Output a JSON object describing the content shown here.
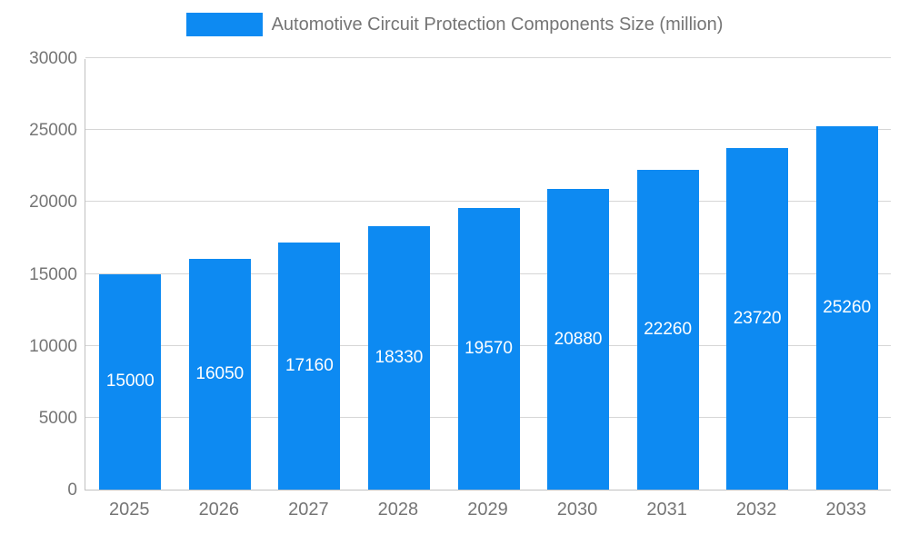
{
  "chart_data": {
    "type": "bar",
    "title": "Automotive Circuit Protection Components Size (million)",
    "categories": [
      "2025",
      "2026",
      "2027",
      "2028",
      "2029",
      "2030",
      "2031",
      "2032",
      "2033"
    ],
    "values": [
      15000,
      16050,
      17160,
      18330,
      19570,
      20880,
      22260,
      23720,
      25260
    ],
    "xlabel": "",
    "ylabel": "",
    "ylim": [
      0,
      30000
    ],
    "y_ticks": [
      0,
      5000,
      10000,
      15000,
      20000,
      25000,
      30000
    ],
    "grid": true,
    "legend_position": "top-center",
    "colors": {
      "bar": "#0d8af2",
      "bar_label": "#ffffff",
      "axis_text": "#757575",
      "gridline": "#d6d6d6",
      "axis_line": "#c0c0c0",
      "background": "#ffffff"
    }
  }
}
